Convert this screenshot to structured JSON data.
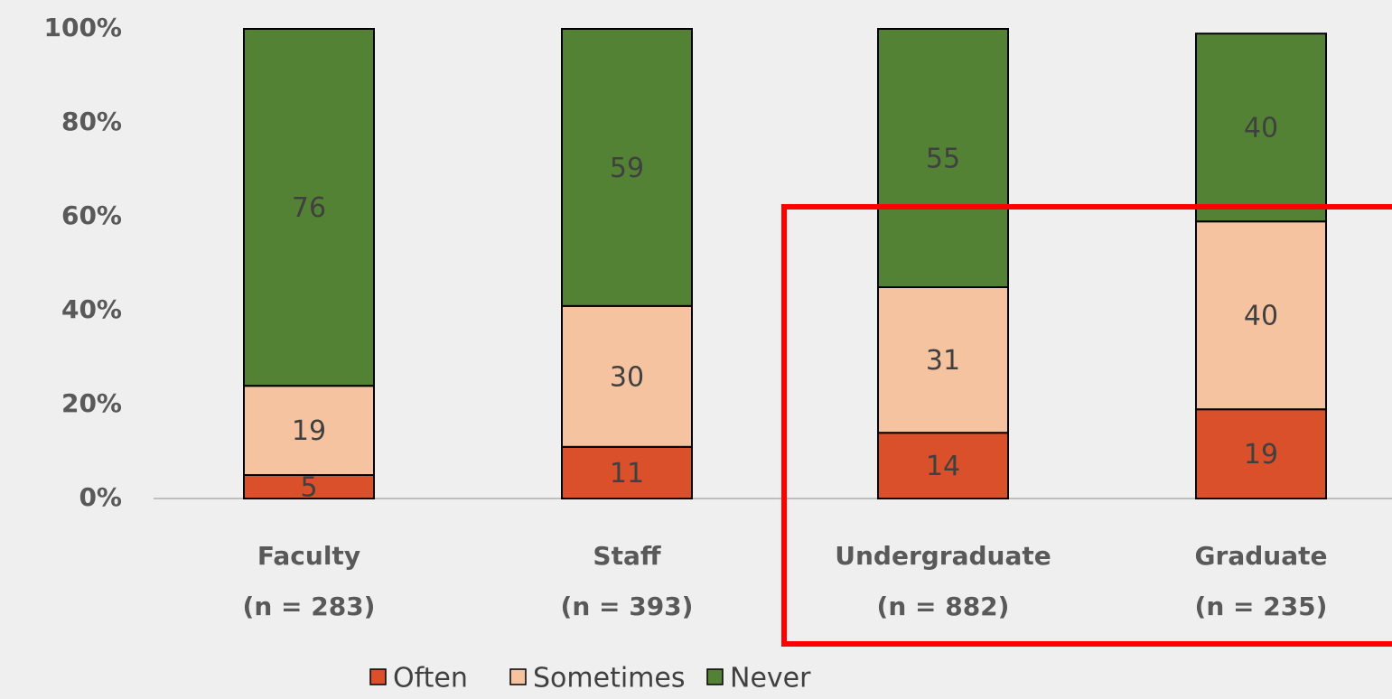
{
  "chart_data": {
    "type": "bar",
    "stacked": true,
    "categories": [
      [
        "Faculty",
        "(n = 283)"
      ],
      [
        "Staff",
        "(n = 393)"
      ],
      [
        "Undergraduate",
        "(n = 882)"
      ],
      [
        "Graduate",
        "(n = 235)"
      ]
    ],
    "series": [
      {
        "name": "Often",
        "color": "#d9502b",
        "values": [
          5,
          11,
          14,
          19
        ]
      },
      {
        "name": "Sometimes",
        "color": "#f5c3a0",
        "values": [
          19,
          30,
          31,
          40
        ]
      },
      {
        "name": "Never",
        "color": "#548235",
        "values": [
          76,
          59,
          55,
          40
        ]
      }
    ],
    "ylim": [
      0,
      100
    ],
    "yticks": [
      {
        "value": 0,
        "label": "0%"
      },
      {
        "value": 20,
        "label": "20%"
      },
      {
        "value": 40,
        "label": "40%"
      },
      {
        "value": 60,
        "label": "60%"
      },
      {
        "value": 80,
        "label": "80%"
      },
      {
        "value": 100,
        "label": "100%"
      }
    ],
    "legend": "bottom"
  }
}
